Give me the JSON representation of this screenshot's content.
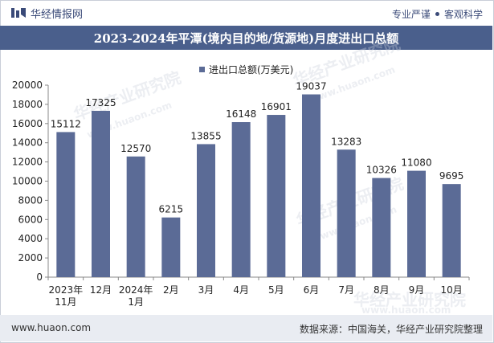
{
  "header": {
    "brand": "华经情报网",
    "slogan_left": "专业严谨",
    "slogan_right": "客观科学"
  },
  "footer": {
    "url": "www.huaon.com",
    "source": "数据来源：中国海关，华经产业研究院整理"
  },
  "watermark": {
    "text": "华经产业研究院",
    "url": "www.huaon.com"
  },
  "colors": {
    "bar": "#5b6b96",
    "title_bg": "#4a5f8c"
  },
  "chart_data": {
    "type": "bar",
    "title": "2023-2024年平潭(境内目的地/货源地)月度进出口总额",
    "legend": [
      "进出口总额(万美元)"
    ],
    "categories": [
      [
        "2023年",
        "11月"
      ],
      [
        "12月"
      ],
      [
        "2024年",
        "1月"
      ],
      [
        "2月"
      ],
      [
        "3月"
      ],
      [
        "4月"
      ],
      [
        "5月"
      ],
      [
        "6月"
      ],
      [
        "7月"
      ],
      [
        "8月"
      ],
      [
        "9月"
      ],
      [
        "10月"
      ]
    ],
    "series": [
      {
        "name": "进出口总额(万美元)",
        "values": [
          15112,
          17325,
          12570,
          6215,
          13855,
          16148,
          16901,
          19037,
          13283,
          10326,
          11080,
          9695
        ]
      }
    ],
    "ylim": [
      0,
      20000
    ],
    "yticks": [
      0,
      2000,
      4000,
      6000,
      8000,
      10000,
      12000,
      14000,
      16000,
      18000,
      20000
    ],
    "xlabel": "",
    "ylabel": ""
  }
}
